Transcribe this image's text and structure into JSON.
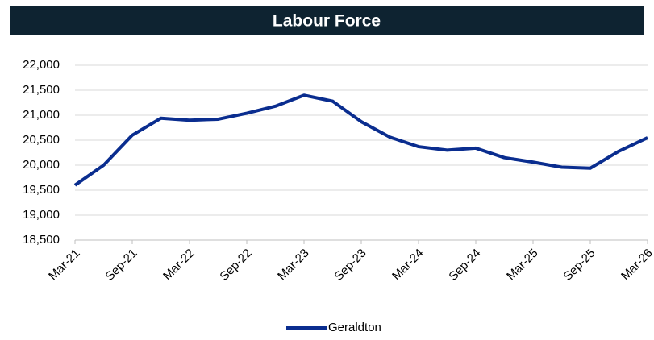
{
  "chart_data": {
    "type": "line",
    "title": "Labour Force",
    "categories": [
      "Mar-21",
      null,
      "Sep-21",
      null,
      "Mar-22",
      null,
      "Sep-22",
      null,
      "Mar-23",
      null,
      "Sep-23",
      null,
      "Mar-24",
      null,
      "Sep-24",
      null,
      "Mar-25",
      null,
      "Sep-25",
      null,
      "Mar-26"
    ],
    "series": [
      {
        "name": "Geraldton",
        "color": "#0a2d8f",
        "values": [
          19600,
          20000,
          20600,
          20940,
          20900,
          20920,
          21040,
          21180,
          21400,
          21280,
          20870,
          20560,
          20370,
          20300,
          20340,
          20150,
          20060,
          19960,
          19940,
          20280,
          20550
        ]
      }
    ],
    "ylim": [
      18500,
      22000
    ],
    "yticks": [
      {
        "value": 18500,
        "label": "18,500"
      },
      {
        "value": 19000,
        "label": "19,000"
      },
      {
        "value": 19500,
        "label": "19,500"
      },
      {
        "value": 20000,
        "label": "20,000"
      },
      {
        "value": 20500,
        "label": "20,500"
      },
      {
        "value": 21000,
        "label": "21,000"
      },
      {
        "value": 21500,
        "label": "21,500"
      },
      {
        "value": 22000,
        "label": "22,000"
      }
    ],
    "grid": true,
    "legend": "bottom"
  }
}
